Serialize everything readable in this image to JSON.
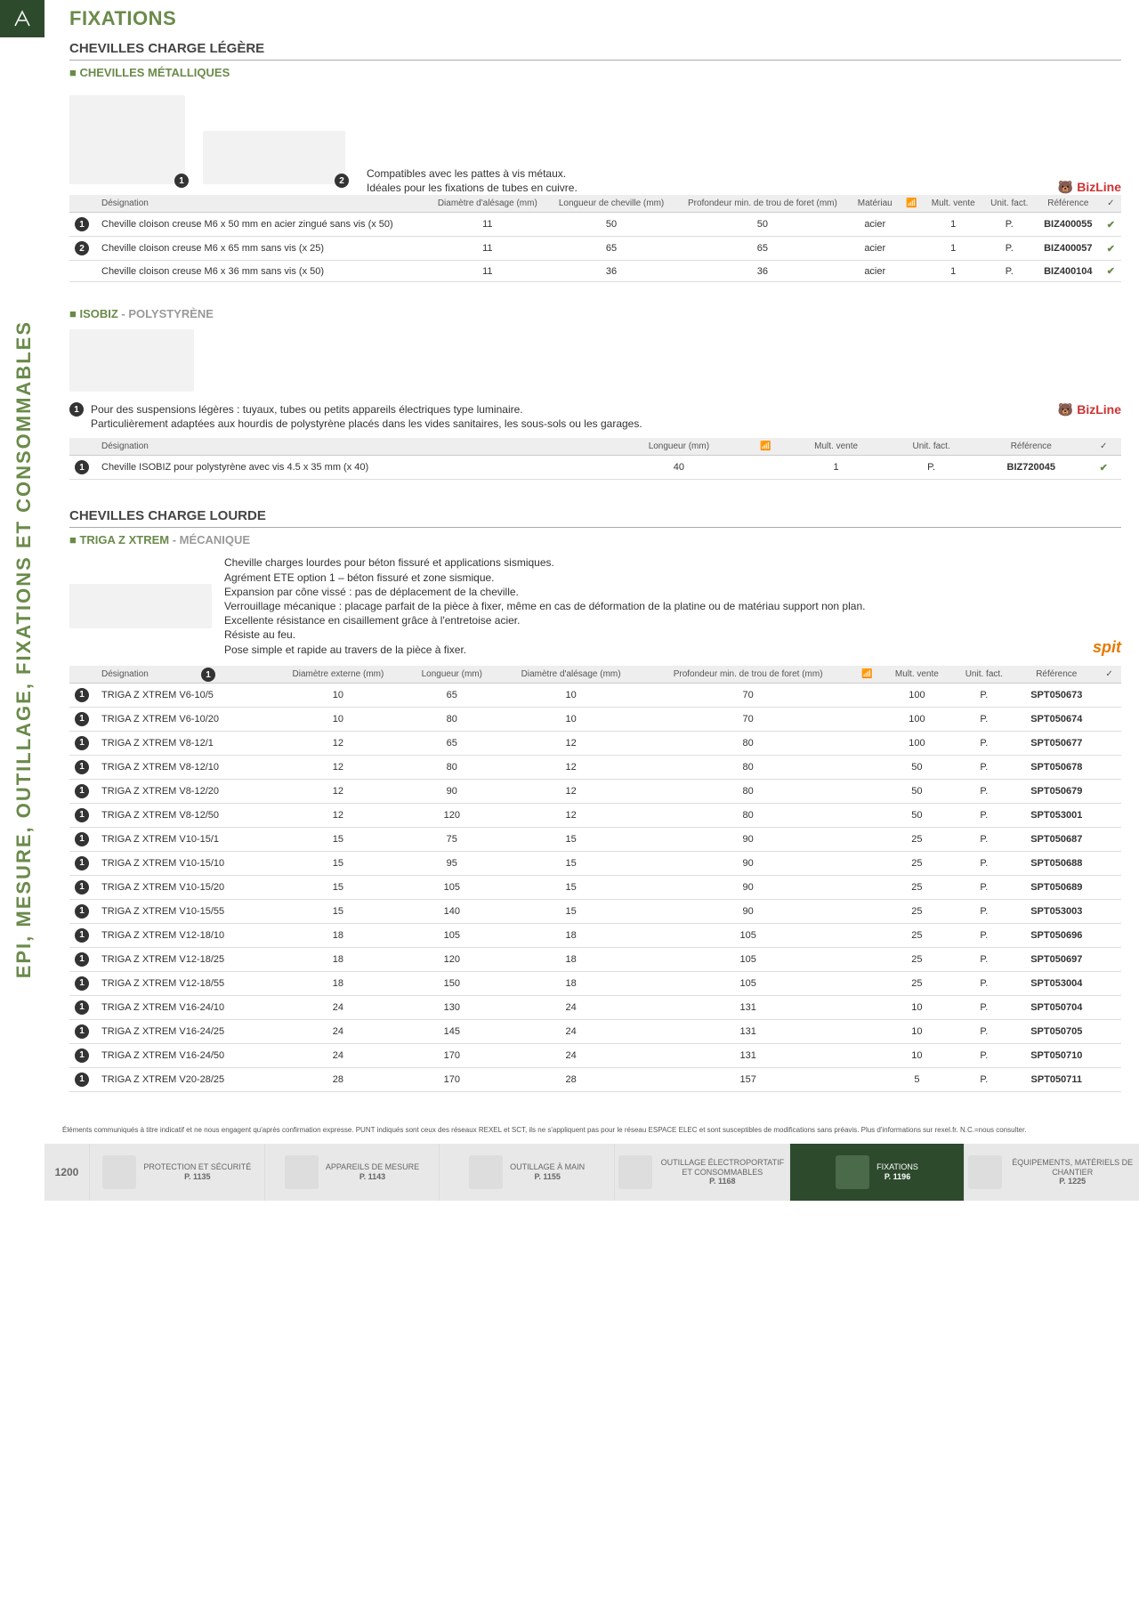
{
  "page": {
    "title": "FIXATIONS",
    "side": "EPI, MESURE, OUTILLAGE, FIXATIONS ET CONSOMMABLES",
    "number": "1200"
  },
  "section1": {
    "heading": "CHEVILLES CHARGE LÉGÈRE",
    "sub1": {
      "title": "CHEVILLES MÉTALLIQUES",
      "desc": "Compatibles avec les pattes à vis métaux.\nIdéales pour les fixations de tubes en cuivre.",
      "brand": "BizLine",
      "cols": [
        "",
        "Désignation",
        "Diamètre d'alésage (mm)",
        "Longueur de cheville (mm)",
        "Profondeur min. de trou de foret (mm)",
        "Matériau",
        "📶",
        "Mult. vente",
        "Unit. fact.",
        "Référence",
        "✓"
      ],
      "rows": [
        {
          "n": "1",
          "d": "Cheville cloison creuse M6 x 50 mm en acier zingué sans vis (x 50)",
          "a": "11",
          "l": "50",
          "p": "50",
          "m": "acier",
          "w": "",
          "mv": "1",
          "u": "P.",
          "r": "BIZ400055",
          "c": "✔"
        },
        {
          "n": "2",
          "d": "Cheville cloison creuse M6 x 65 mm sans vis (x 25)",
          "a": "11",
          "l": "65",
          "p": "65",
          "m": "acier",
          "w": "",
          "mv": "1",
          "u": "P.",
          "r": "BIZ400057",
          "c": "✔"
        },
        {
          "n": "",
          "d": "Cheville cloison creuse M6 x 36 mm sans vis (x 50)",
          "a": "11",
          "l": "36",
          "p": "36",
          "m": "acier",
          "w": "",
          "mv": "1",
          "u": "P.",
          "r": "BIZ400104",
          "c": "✔"
        }
      ]
    },
    "sub2": {
      "title": "ISOBIZ",
      "grey": " - POLYSTYRÈNE",
      "desc": "Pour des suspensions légères : tuyaux, tubes ou petits appareils électriques type luminaire.\nParticulièrement adaptées aux hourdis de polystyrène placés dans les vides sanitaires, les sous-sols ou les garages.",
      "brand": "BizLine",
      "cols": [
        "",
        "Désignation",
        "Longueur (mm)",
        "📶",
        "Mult. vente",
        "Unit. fact.",
        "Référence",
        "✓"
      ],
      "rows": [
        {
          "n": "1",
          "d": "Cheville ISOBIZ pour polystyrène avec vis 4.5 x 35 mm (x 40)",
          "l": "40",
          "w": "",
          "mv": "1",
          "u": "P.",
          "r": "BIZ720045",
          "c": "✔"
        }
      ]
    }
  },
  "section2": {
    "heading": "CHEVILLES CHARGE LOURDE",
    "sub1": {
      "title": "TRIGA Z XTREM",
      "grey": " - MÉCANIQUE",
      "desc": "Cheville charges lourdes pour béton fissuré et applications sismiques.\nAgrément ETE option 1 – béton fissuré et zone sismique.\nExpansion par cône vissé : pas de déplacement de la cheville.\nVerrouillage mécanique : placage parfait de la pièce à fixer, même en cas de déformation de la platine ou de matériau support non plan.\nExcellente résistance en cisaillement grâce à l'entretoise acier.\nRésiste au feu.\nPose simple et rapide au travers de la pièce à fixer.",
      "brand": "spit",
      "cols": [
        "",
        "Désignation",
        "Diamètre externe (mm)",
        "Longueur (mm)",
        "Diamètre d'alésage (mm)",
        "Profondeur min. de trou de foret (mm)",
        "📶",
        "Mult. vente",
        "Unit. fact.",
        "Référence",
        "✓"
      ],
      "rows": [
        {
          "n": "1",
          "d": "TRIGA Z XTREM V6-10/5",
          "de": "10",
          "l": "65",
          "da": "10",
          "p": "70",
          "w": "",
          "mv": "100",
          "u": "P.",
          "r": "SPT050673"
        },
        {
          "n": "1",
          "d": "TRIGA Z XTREM V6-10/20",
          "de": "10",
          "l": "80",
          "da": "10",
          "p": "70",
          "w": "",
          "mv": "100",
          "u": "P.",
          "r": "SPT050674"
        },
        {
          "n": "1",
          "d": "TRIGA Z XTREM V8-12/1",
          "de": "12",
          "l": "65",
          "da": "12",
          "p": "80",
          "w": "",
          "mv": "100",
          "u": "P.",
          "r": "SPT050677"
        },
        {
          "n": "1",
          "d": "TRIGA Z XTREM V8-12/10",
          "de": "12",
          "l": "80",
          "da": "12",
          "p": "80",
          "w": "",
          "mv": "50",
          "u": "P.",
          "r": "SPT050678"
        },
        {
          "n": "1",
          "d": "TRIGA Z XTREM V8-12/20",
          "de": "12",
          "l": "90",
          "da": "12",
          "p": "80",
          "w": "",
          "mv": "50",
          "u": "P.",
          "r": "SPT050679"
        },
        {
          "n": "1",
          "d": "TRIGA Z XTREM V8-12/50",
          "de": "12",
          "l": "120",
          "da": "12",
          "p": "80",
          "w": "",
          "mv": "50",
          "u": "P.",
          "r": "SPT053001"
        },
        {
          "n": "1",
          "d": "TRIGA Z XTREM V10-15/1",
          "de": "15",
          "l": "75",
          "da": "15",
          "p": "90",
          "w": "",
          "mv": "25",
          "u": "P.",
          "r": "SPT050687"
        },
        {
          "n": "1",
          "d": "TRIGA Z XTREM V10-15/10",
          "de": "15",
          "l": "95",
          "da": "15",
          "p": "90",
          "w": "",
          "mv": "25",
          "u": "P.",
          "r": "SPT050688"
        },
        {
          "n": "1",
          "d": "TRIGA Z XTREM V10-15/20",
          "de": "15",
          "l": "105",
          "da": "15",
          "p": "90",
          "w": "",
          "mv": "25",
          "u": "P.",
          "r": "SPT050689"
        },
        {
          "n": "1",
          "d": "TRIGA Z XTREM V10-15/55",
          "de": "15",
          "l": "140",
          "da": "15",
          "p": "90",
          "w": "",
          "mv": "25",
          "u": "P.",
          "r": "SPT053003"
        },
        {
          "n": "1",
          "d": "TRIGA Z XTREM V12-18/10",
          "de": "18",
          "l": "105",
          "da": "18",
          "p": "105",
          "w": "",
          "mv": "25",
          "u": "P.",
          "r": "SPT050696"
        },
        {
          "n": "1",
          "d": "TRIGA Z XTREM V12-18/25",
          "de": "18",
          "l": "120",
          "da": "18",
          "p": "105",
          "w": "",
          "mv": "25",
          "u": "P.",
          "r": "SPT050697"
        },
        {
          "n": "1",
          "d": "TRIGA Z XTREM V12-18/55",
          "de": "18",
          "l": "150",
          "da": "18",
          "p": "105",
          "w": "",
          "mv": "25",
          "u": "P.",
          "r": "SPT053004"
        },
        {
          "n": "1",
          "d": "TRIGA Z XTREM V16-24/10",
          "de": "24",
          "l": "130",
          "da": "24",
          "p": "131",
          "w": "",
          "mv": "10",
          "u": "P.",
          "r": "SPT050704"
        },
        {
          "n": "1",
          "d": "TRIGA Z XTREM V16-24/25",
          "de": "24",
          "l": "145",
          "da": "24",
          "p": "131",
          "w": "",
          "mv": "10",
          "u": "P.",
          "r": "SPT050705"
        },
        {
          "n": "1",
          "d": "TRIGA Z XTREM V16-24/50",
          "de": "24",
          "l": "170",
          "da": "24",
          "p": "131",
          "w": "",
          "mv": "10",
          "u": "P.",
          "r": "SPT050710"
        },
        {
          "n": "1",
          "d": "TRIGA Z XTREM V20-28/25",
          "de": "28",
          "l": "170",
          "da": "28",
          "p": "157",
          "w": "",
          "mv": "5",
          "u": "P.",
          "r": "SPT050711"
        }
      ]
    }
  },
  "footnote": "Éléments communiqués à titre indicatif et ne nous engagent qu'après confirmation expresse. PUNT indiqués sont ceux des réseaux REXEL et SCT, ils ne s'appliquent pas pour le réseau ESPACE ELEC et sont susceptibles de modifications sans préavis. Plus d'informations sur rexel.fr. N.C.=nous consulter.",
  "nav": [
    {
      "l": "PROTECTION ET SÉCURITÉ",
      "p": "P. 1135"
    },
    {
      "l": "APPAREILS DE MESURE",
      "p": "P. 1143"
    },
    {
      "l": "OUTILLAGE À MAIN",
      "p": "P. 1155"
    },
    {
      "l": "OUTILLAGE ÉLECTROPORTATIF ET CONSOMMABLES",
      "p": "P. 1168"
    },
    {
      "l": "FIXATIONS",
      "p": "P. 1196",
      "act": true
    },
    {
      "l": "ÉQUIPEMENTS, MATÉRIELS DE CHANTIER",
      "p": "P. 1225"
    }
  ]
}
